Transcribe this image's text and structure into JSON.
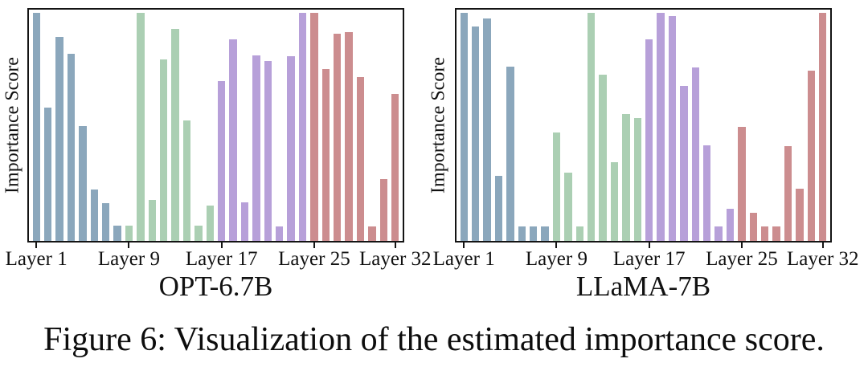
{
  "figure": {
    "caption": "Figure 6: Visualization of the estimated importance score."
  },
  "chart_data": [
    {
      "type": "bar",
      "title": "OPT-6.7B",
      "ylabel": "Importance Score",
      "xlabel": "",
      "grid": false,
      "legend": "none",
      "ylim": [
        0,
        1
      ],
      "y_tick_labels_shown": false,
      "x": [
        1,
        2,
        3,
        4,
        5,
        6,
        7,
        8,
        9,
        10,
        11,
        12,
        13,
        14,
        15,
        16,
        17,
        18,
        19,
        20,
        21,
        22,
        23,
        24,
        25,
        26,
        27,
        28,
        29,
        30,
        31,
        32
      ],
      "values": [
        1.0,
        0.585,
        0.895,
        0.82,
        0.505,
        0.225,
        0.165,
        0.068,
        0.068,
        1.0,
        0.178,
        0.795,
        0.93,
        0.53,
        0.068,
        0.155,
        0.7,
        0.885,
        0.168,
        0.815,
        0.79,
        0.065,
        0.81,
        1.0,
        1.0,
        0.755,
        0.91,
        0.915,
        0.72,
        0.065,
        0.27,
        0.645
      ],
      "group_size": 8,
      "group_colors": [
        "#8BA7BC",
        "#ABCFB3",
        "#B7A0D9",
        "#CC8D8F"
      ],
      "xtick_layers": [
        1,
        9,
        17,
        25,
        32
      ],
      "xtick_labels": [
        "Layer 1",
        "Layer 9",
        "Layer 17",
        "Layer 25",
        "Layer 32"
      ]
    },
    {
      "type": "bar",
      "title": "LLaMA-7B",
      "ylabel": "Importance Score",
      "xlabel": "",
      "grid": false,
      "legend": "none",
      "ylim": [
        0,
        1
      ],
      "y_tick_labels_shown": false,
      "x": [
        1,
        2,
        3,
        4,
        5,
        6,
        7,
        8,
        9,
        10,
        11,
        12,
        13,
        14,
        15,
        16,
        17,
        18,
        19,
        20,
        21,
        22,
        23,
        24,
        25,
        26,
        27,
        28,
        29,
        30,
        31,
        32
      ],
      "values": [
        1.0,
        0.94,
        0.975,
        0.285,
        0.765,
        0.065,
        0.065,
        0.065,
        0.475,
        0.3,
        0.065,
        1.0,
        0.73,
        0.345,
        0.555,
        0.54,
        0.885,
        1.0,
        0.985,
        0.68,
        0.76,
        0.42,
        0.062,
        0.14,
        0.5,
        0.125,
        0.062,
        0.062,
        0.415,
        0.23,
        0.745,
        1.0
      ],
      "group_size": 8,
      "group_colors": [
        "#8BA7BC",
        "#ABCFB3",
        "#B7A0D9",
        "#CC8D8F"
      ],
      "xtick_layers": [
        1,
        9,
        17,
        25,
        32
      ],
      "xtick_labels": [
        "Layer 1",
        "Layer 9",
        "Layer 17",
        "Layer 25",
        "Layer 32"
      ]
    }
  ]
}
